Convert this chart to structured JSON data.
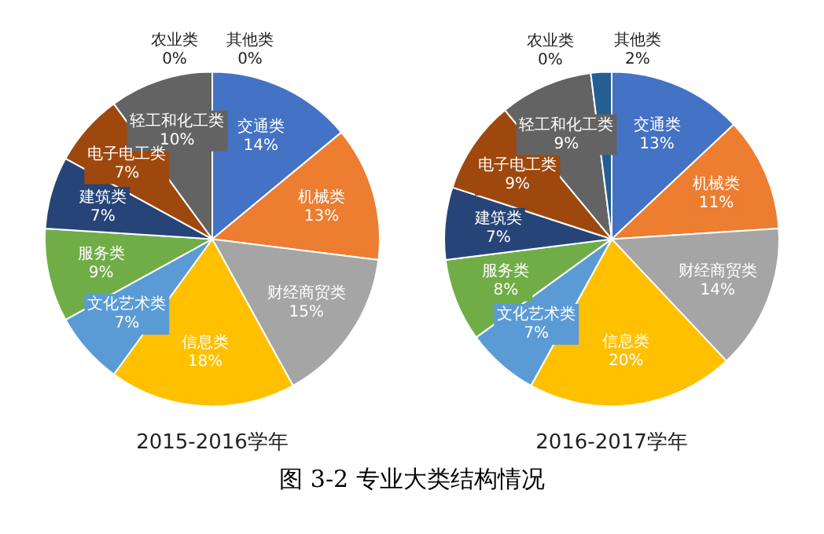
{
  "chart_data": [
    {
      "type": "pie",
      "title": "2015-2016学年",
      "categories": [
        "交通类",
        "机械类",
        "财经商贸类",
        "信息类",
        "文化艺术类",
        "服务类",
        "建筑类",
        "电子电工类",
        "轻工和化工类",
        "农业类",
        "其他类"
      ],
      "values": [
        14,
        13,
        15,
        18,
        7,
        9,
        7,
        7,
        10,
        0,
        0
      ],
      "value_labels": [
        "14%",
        "13%",
        "15%",
        "18%",
        "7%",
        "9%",
        "7%",
        "7%",
        "10%",
        "0%",
        "0%"
      ],
      "colors": [
        "#4472c4",
        "#ed7d31",
        "#a5a5a5",
        "#ffc000",
        "#5b9bd5",
        "#70ad47",
        "#264478",
        "#9e480e",
        "#636363",
        "#997300",
        "#255e91"
      ],
      "legend": false,
      "annotations": [
        "图 3-2 专业大类结构情况"
      ]
    },
    {
      "type": "pie",
      "title": "2016-2017学年",
      "categories": [
        "交通类",
        "机械类",
        "财经商贸类",
        "信息类",
        "文化艺术类",
        "服务类",
        "建筑类",
        "电子电工类",
        "轻工和化工类",
        "农业类",
        "其他类"
      ],
      "values": [
        13,
        11,
        14,
        20,
        7,
        8,
        7,
        9,
        9,
        0,
        2
      ],
      "value_labels": [
        "13%",
        "11%",
        "14%",
        "20%",
        "7%",
        "8%",
        "7%",
        "9%",
        "9%",
        "0%",
        "2%"
      ],
      "colors": [
        "#4472c4",
        "#ed7d31",
        "#a5a5a5",
        "#ffc000",
        "#5b9bd5",
        "#70ad47",
        "#264478",
        "#9e480e",
        "#636363",
        "#997300",
        "#255e91"
      ],
      "legend": false
    }
  ]
}
